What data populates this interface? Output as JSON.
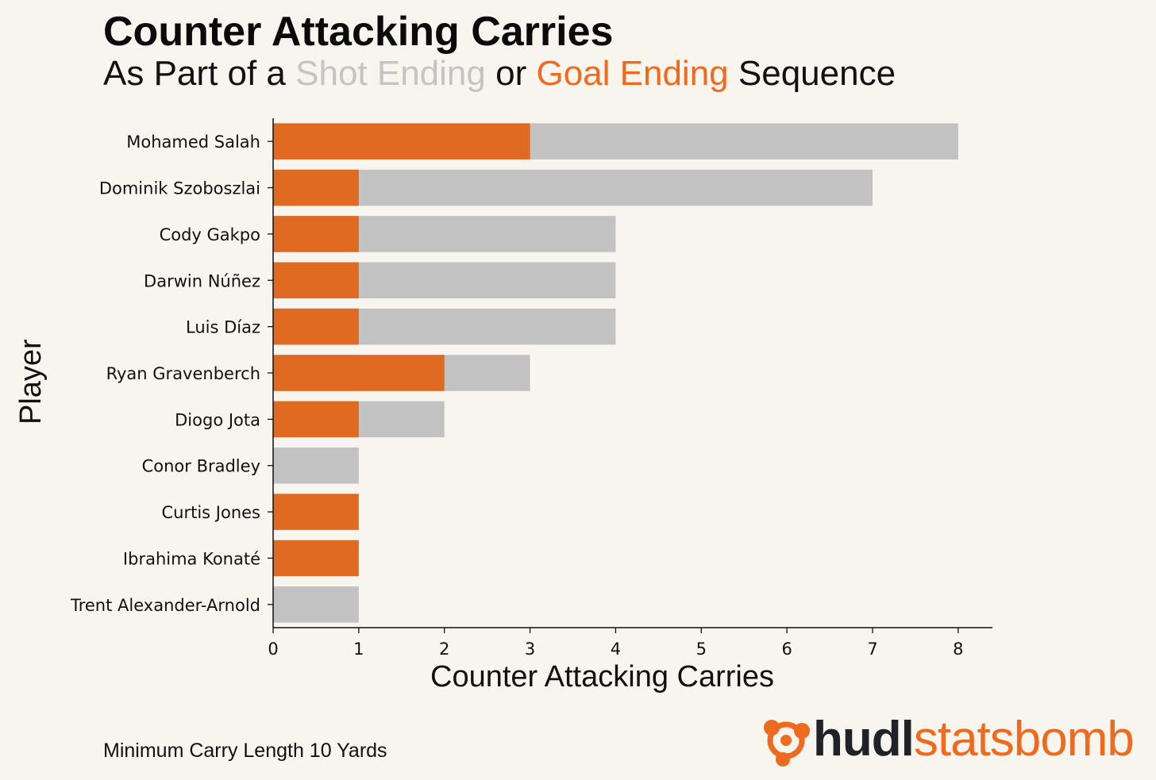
{
  "header": {
    "title": "Counter Attacking Carries",
    "subtitle_prefix": "As Part of a",
    "subtitle_shot": "Shot Ending",
    "subtitle_or": "or",
    "subtitle_goal": "Goal Ending",
    "subtitle_suffix": "Sequence"
  },
  "footnote": "Minimum Carry Length 10 Yards",
  "logo": {
    "part1": "hudl",
    "part2": "statsbomb",
    "icon": "statsbomb-logo-icon"
  },
  "colors": {
    "shot": "#c2c2c2",
    "goal": "#e06a22",
    "background": "#f8f5ee",
    "accent": "#ee6a1f"
  },
  "chart_data": {
    "type": "bar",
    "orientation": "horizontal",
    "stacked": "overlay",
    "xlabel": "Counter Attacking Carries",
    "ylabel": "Player",
    "xlim": [
      0,
      8.4
    ],
    "xticks": [
      "0",
      "1",
      "2",
      "3",
      "4",
      "5",
      "6",
      "7",
      "8"
    ],
    "categories": [
      "Mohamed Salah",
      "Dominik Szoboszlai",
      "Cody Gakpo",
      "Darwin Núñez",
      "Luis Díaz",
      "Ryan Gravenberch",
      "Diogo Jota",
      "Conor Bradley",
      "Curtis Jones",
      "Ibrahima Konaté",
      "Trent Alexander-Arnold"
    ],
    "series": [
      {
        "name": "Shot Ending",
        "values": [
          8,
          7,
          4,
          4,
          4,
          3,
          2,
          1,
          0,
          0,
          1
        ]
      },
      {
        "name": "Goal Ending",
        "values": [
          3,
          1,
          1,
          1,
          1,
          2,
          1,
          0,
          1,
          1,
          0
        ]
      }
    ],
    "grid": false
  }
}
